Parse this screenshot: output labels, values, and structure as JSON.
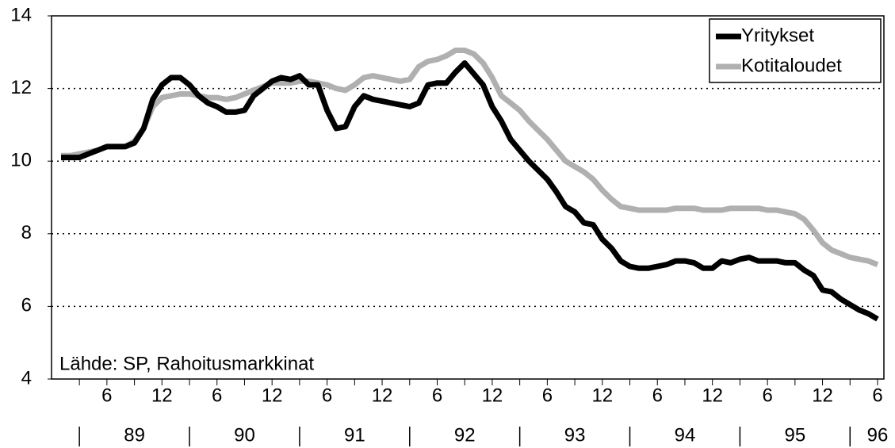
{
  "chart_data": {
    "type": "line",
    "categories": [
      null,
      null,
      null,
      null,
      null,
      "6",
      null,
      null,
      null,
      null,
      null,
      "12",
      null,
      null,
      null,
      null,
      null,
      "6",
      null,
      null,
      null,
      null,
      null,
      "12",
      null,
      null,
      null,
      null,
      null,
      "6",
      null,
      null,
      null,
      null,
      null,
      "12",
      null,
      null,
      null,
      null,
      null,
      "6",
      null,
      null,
      null,
      null,
      null,
      "12",
      null,
      null,
      null,
      null,
      null,
      "6",
      null,
      null,
      null,
      null,
      null,
      "12",
      null,
      null,
      null,
      null,
      null,
      "6",
      null,
      null,
      null,
      null,
      null,
      "12",
      null,
      null,
      null,
      null,
      null,
      "6",
      null,
      null,
      null,
      null,
      null,
      "12",
      null,
      null,
      null,
      null,
      null,
      "6"
    ],
    "years": [
      "89",
      "90",
      "91",
      "92",
      "93",
      "94",
      "95",
      "96"
    ],
    "series": [
      {
        "name": "Yritykset",
        "color": "#000000",
        "values": [
          10.1,
          10.1,
          10.1,
          10.2,
          10.3,
          10.4,
          10.4,
          10.4,
          10.5,
          10.9,
          11.7,
          12.1,
          12.3,
          12.3,
          12.1,
          11.8,
          11.6,
          11.5,
          11.35,
          11.35,
          11.4,
          11.8,
          12.0,
          12.2,
          12.3,
          12.25,
          12.35,
          12.1,
          12.1,
          11.4,
          10.9,
          10.95,
          11.5,
          11.8,
          11.7,
          11.65,
          11.6,
          11.55,
          11.5,
          11.6,
          12.1,
          12.15,
          12.15,
          12.45,
          12.7,
          12.4,
          12.1,
          11.5,
          11.1,
          10.6,
          10.3,
          10.0,
          9.75,
          9.5,
          9.15,
          8.75,
          8.6,
          8.3,
          8.25,
          7.85,
          7.6,
          7.25,
          7.1,
          7.05,
          7.05,
          7.1,
          7.15,
          7.25,
          7.25,
          7.2,
          7.05,
          7.05,
          7.25,
          7.2,
          7.3,
          7.35,
          7.25,
          7.25,
          7.25,
          7.2,
          7.2,
          7.0,
          6.85,
          6.45,
          6.4,
          6.2,
          6.05,
          5.9,
          5.8,
          5.65
        ]
      },
      {
        "name": "Kotitaloudet",
        "color": "#b0b0b0",
        "values": [
          10.15,
          10.15,
          10.2,
          10.25,
          10.3,
          10.4,
          10.4,
          10.4,
          10.55,
          10.9,
          11.5,
          11.75,
          11.8,
          11.85,
          11.85,
          11.8,
          11.75,
          11.75,
          11.7,
          11.75,
          11.85,
          11.95,
          12.05,
          12.15,
          12.15,
          12.15,
          12.2,
          12.2,
          12.15,
          12.1,
          12.0,
          11.95,
          12.1,
          12.3,
          12.35,
          12.3,
          12.25,
          12.2,
          12.25,
          12.6,
          12.75,
          12.8,
          12.9,
          13.05,
          13.05,
          12.95,
          12.7,
          12.3,
          11.8,
          11.6,
          11.4,
          11.1,
          10.85,
          10.6,
          10.3,
          10.0,
          9.85,
          9.7,
          9.5,
          9.2,
          8.95,
          8.75,
          8.7,
          8.65,
          8.65,
          8.65,
          8.65,
          8.7,
          8.7,
          8.7,
          8.65,
          8.65,
          8.65,
          8.7,
          8.7,
          8.7,
          8.7,
          8.65,
          8.65,
          8.6,
          8.55,
          8.4,
          8.1,
          7.75,
          7.55,
          7.45,
          7.35,
          7.3,
          7.25,
          7.15
        ]
      }
    ],
    "ylim": [
      4,
      14
    ],
    "yticks": [
      4,
      6,
      8,
      10,
      12,
      14
    ],
    "grid": true,
    "legend": "upper right",
    "annotation": "Lähde: SP, Rahoitusmarkkinat"
  }
}
